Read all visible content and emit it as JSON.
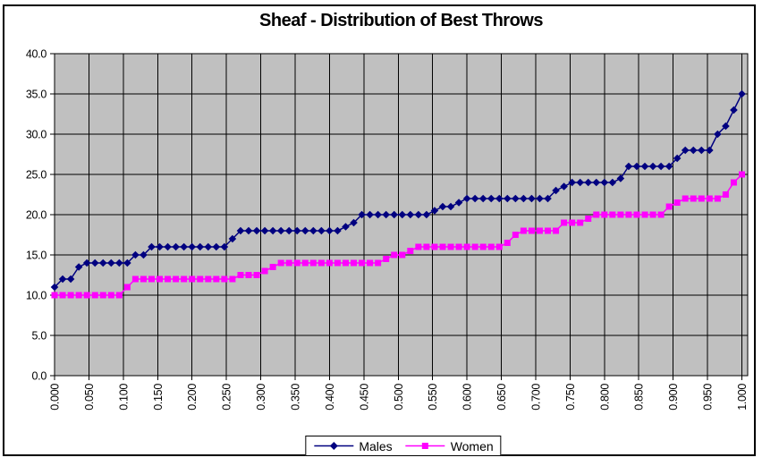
{
  "window": {
    "background": "#FFFFFF",
    "border_color": "#000000"
  },
  "chart_data": {
    "type": "line",
    "title": "Sheaf - Distribution of Best Throws",
    "xlabel": "",
    "ylabel": "",
    "xlim": [
      0.0,
      1.0
    ],
    "ylim": [
      0.0,
      40.0
    ],
    "grid": true,
    "plot_background": "#C0C0C0",
    "gridline_color": "#000000",
    "axis_color": "#000000",
    "legend_position": "bottom-center",
    "x_tick_labels": [
      "0.000",
      "0.050",
      "0.100",
      "0.150",
      "0.200",
      "0.250",
      "0.300",
      "0.350",
      "0.400",
      "0.450",
      "0.500",
      "0.550",
      "0.600",
      "0.650",
      "0.700",
      "0.750",
      "0.800",
      "0.850",
      "0.900",
      "0.950",
      "1.000"
    ],
    "y_tick_labels": [
      "0.0",
      "5.0",
      "10.0",
      "15.0",
      "20.0",
      "25.0",
      "30.0",
      "35.0",
      "40.0"
    ],
    "x_description": "cumulative fraction of throwers; 86 points evenly spaced, x = i/85",
    "series": [
      {
        "name": "Males",
        "color": "#000080",
        "marker": "diamond",
        "values": [
          11,
          12,
          12,
          13.5,
          14,
          14,
          14,
          14,
          14,
          14,
          15,
          15,
          16,
          16,
          16,
          16,
          16,
          16,
          16,
          16,
          16,
          16,
          17,
          18,
          18,
          18,
          18,
          18,
          18,
          18,
          18,
          18,
          18,
          18,
          18,
          18,
          18.5,
          19,
          20,
          20,
          20,
          20,
          20,
          20,
          20,
          20,
          20,
          20.5,
          21,
          21,
          21.5,
          22,
          22,
          22,
          22,
          22,
          22,
          22,
          22,
          22,
          22,
          22,
          23,
          23.5,
          24,
          24,
          24,
          24,
          24,
          24,
          24.5,
          26,
          26,
          26,
          26,
          26,
          26,
          27,
          28,
          28,
          28,
          28,
          30,
          31,
          33,
          35
        ]
      },
      {
        "name": "Women",
        "color": "#FF00FF",
        "marker": "square",
        "values": [
          10,
          10,
          10,
          10,
          10,
          10,
          10,
          10,
          10,
          11,
          12,
          12,
          12,
          12,
          12,
          12,
          12,
          12,
          12,
          12,
          12,
          12,
          12,
          12.5,
          12.5,
          12.5,
          13,
          13.5,
          14,
          14,
          14,
          14,
          14,
          14,
          14,
          14,
          14,
          14,
          14,
          14,
          14,
          14.5,
          15,
          15,
          15.5,
          16,
          16,
          16,
          16,
          16,
          16,
          16,
          16,
          16,
          16,
          16,
          16.5,
          17.5,
          18,
          18,
          18,
          18,
          18,
          19,
          19,
          19,
          19.5,
          20,
          20,
          20,
          20,
          20,
          20,
          20,
          20,
          20,
          21,
          21.5,
          22,
          22,
          22,
          22,
          22,
          22.5,
          24,
          25
        ]
      }
    ]
  }
}
